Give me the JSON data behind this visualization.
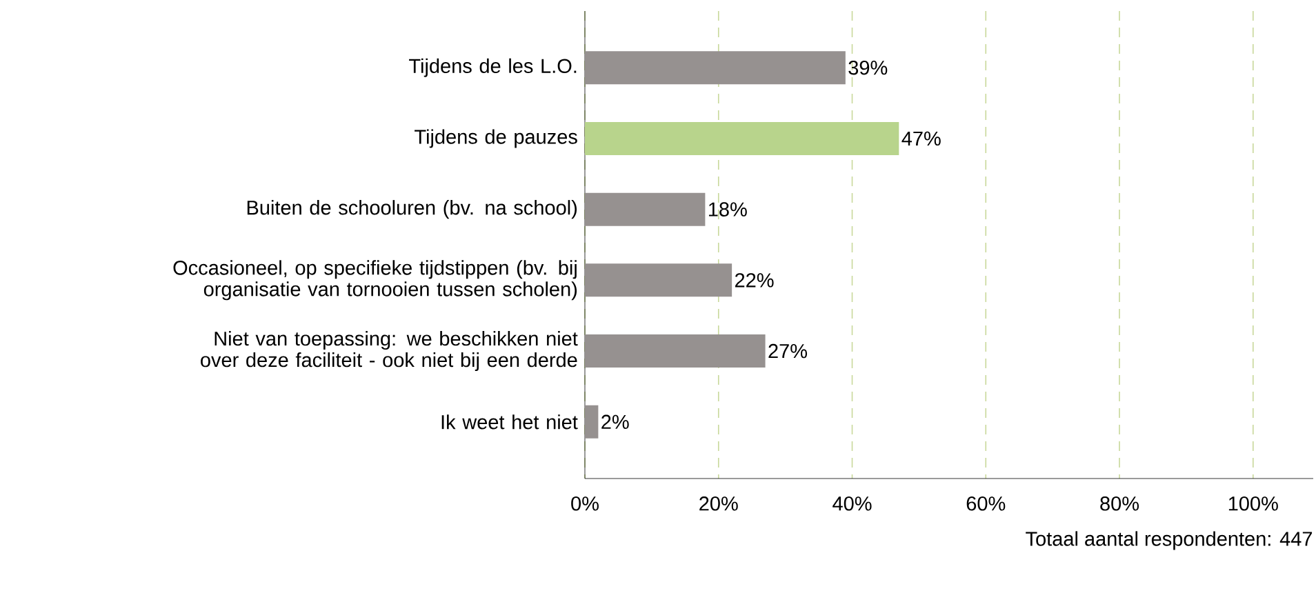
{
  "chart_data": {
    "type": "bar",
    "orientation": "horizontal",
    "categories": [
      "Tijdens de les L.O.",
      "Tijdens de pauzes",
      "Buiten de schooluren (bv. na school)",
      "Occasioneel, op specifieke tijdstippen (bv. bij organisatie van tornooien tussen scholen)",
      "Niet van toepassing: we beschikken niet over deze faciliteit - ook niet bij een derde",
      "Ik weet het niet"
    ],
    "values": [
      39,
      47,
      18,
      22,
      27,
      2
    ],
    "value_labels": [
      "39%",
      "47%",
      "18%",
      "22%",
      "27%",
      "2%"
    ],
    "colors": [
      "#969190",
      "#b8d48c",
      "#969190",
      "#969190",
      "#969190",
      "#969190"
    ],
    "xlim": [
      0,
      109
    ],
    "xticks": [
      {
        "value": 0,
        "label": "0%"
      },
      {
        "value": 20,
        "label": "20%"
      },
      {
        "value": 40,
        "label": "40%"
      },
      {
        "value": 60,
        "label": "60%"
      },
      {
        "value": 80,
        "label": "80%"
      },
      {
        "value": 100,
        "label": "100%"
      }
    ],
    "grid": "x",
    "annotations": [
      "Totaal aantal respondenten: 447"
    ]
  }
}
